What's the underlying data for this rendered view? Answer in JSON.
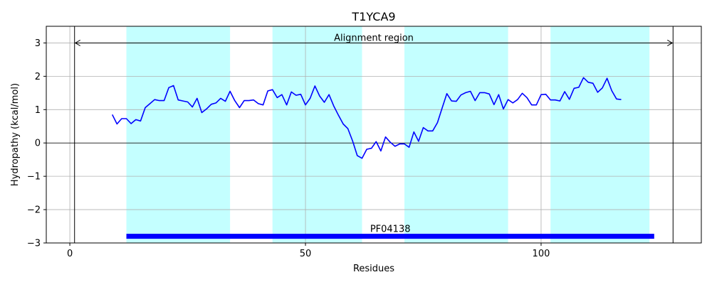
{
  "chart_data": {
    "type": "line",
    "title": "T1YCA9",
    "xlabel": "Residues",
    "ylabel": "Hydropathy (kcal/mol)",
    "xlim": [
      -5,
      134
    ],
    "ylim": [
      -3,
      3.5
    ],
    "xticks": [
      0,
      50,
      100
    ],
    "xtick_labels": [
      "0",
      "50",
      "100"
    ],
    "yticks": [
      -3,
      -2,
      -1,
      0,
      1,
      2,
      3
    ],
    "ytick_labels": [
      "−3",
      "−2",
      "−1",
      "0",
      "1",
      "2",
      "3"
    ],
    "grid": true,
    "zero_line": 0,
    "series": [
      {
        "color": "#0000ff",
        "x": [
          9,
          10,
          11,
          12,
          13,
          14,
          15,
          16,
          17,
          18,
          19,
          20,
          21,
          22,
          23,
          24,
          25,
          26,
          27,
          28,
          29,
          30,
          31,
          32,
          33,
          34,
          35,
          36,
          37,
          38,
          39,
          40,
          41,
          42,
          43,
          44,
          45,
          46,
          47,
          48,
          49,
          50,
          51,
          52,
          53,
          54,
          55,
          56,
          57,
          58,
          59,
          60,
          61,
          62,
          63,
          64,
          65,
          66,
          67,
          68,
          69,
          70,
          71,
          72,
          73,
          74,
          75,
          76,
          77,
          78,
          79,
          80,
          81,
          82,
          83,
          84,
          85,
          86,
          87,
          88,
          89,
          90,
          91,
          92,
          93,
          94,
          95,
          96,
          97,
          98,
          99,
          100,
          101,
          102,
          103,
          104,
          105,
          106,
          107,
          108,
          109,
          110,
          111,
          112,
          113,
          114,
          115,
          116,
          117
        ],
        "y": [
          0.85,
          0.57,
          0.73,
          0.73,
          0.58,
          0.7,
          0.66,
          1.06,
          1.18,
          1.3,
          1.27,
          1.27,
          1.66,
          1.72,
          1.29,
          1.26,
          1.23,
          1.08,
          1.34,
          0.91,
          1.02,
          1.16,
          1.2,
          1.34,
          1.25,
          1.55,
          1.27,
          1.06,
          1.27,
          1.27,
          1.29,
          1.18,
          1.14,
          1.56,
          1.6,
          1.36,
          1.45,
          1.14,
          1.53,
          1.43,
          1.46,
          1.14,
          1.34,
          1.71,
          1.41,
          1.22,
          1.45,
          1.11,
          0.83,
          0.57,
          0.43,
          0.06,
          -0.38,
          -0.46,
          -0.19,
          -0.16,
          0.04,
          -0.24,
          0.18,
          0.02,
          -0.1,
          -0.03,
          -0.03,
          -0.13,
          0.33,
          0.05,
          0.46,
          0.36,
          0.36,
          0.61,
          1.05,
          1.48,
          1.26,
          1.25,
          1.44,
          1.51,
          1.55,
          1.27,
          1.51,
          1.51,
          1.47,
          1.15,
          1.45,
          1.02,
          1.3,
          1.2,
          1.3,
          1.49,
          1.36,
          1.14,
          1.14,
          1.45,
          1.46,
          1.29,
          1.29,
          1.26,
          1.54,
          1.31,
          1.64,
          1.67,
          1.96,
          1.82,
          1.79,
          1.52,
          1.65,
          1.94,
          1.57,
          1.32,
          1.3
        ]
      }
    ],
    "shaded_regions": [
      [
        12,
        34
      ],
      [
        43,
        62
      ],
      [
        71,
        93
      ],
      [
        102,
        123
      ]
    ],
    "shade_color": "#c4ffff",
    "alignment_region": {
      "label": "Alignment region",
      "x_start": 1,
      "x_end": 128,
      "y": 3
    },
    "domain_bar": {
      "label": "PF04138",
      "x_start": 12,
      "x_end": 124,
      "y": -2.8,
      "color": "#0000ff"
    }
  }
}
